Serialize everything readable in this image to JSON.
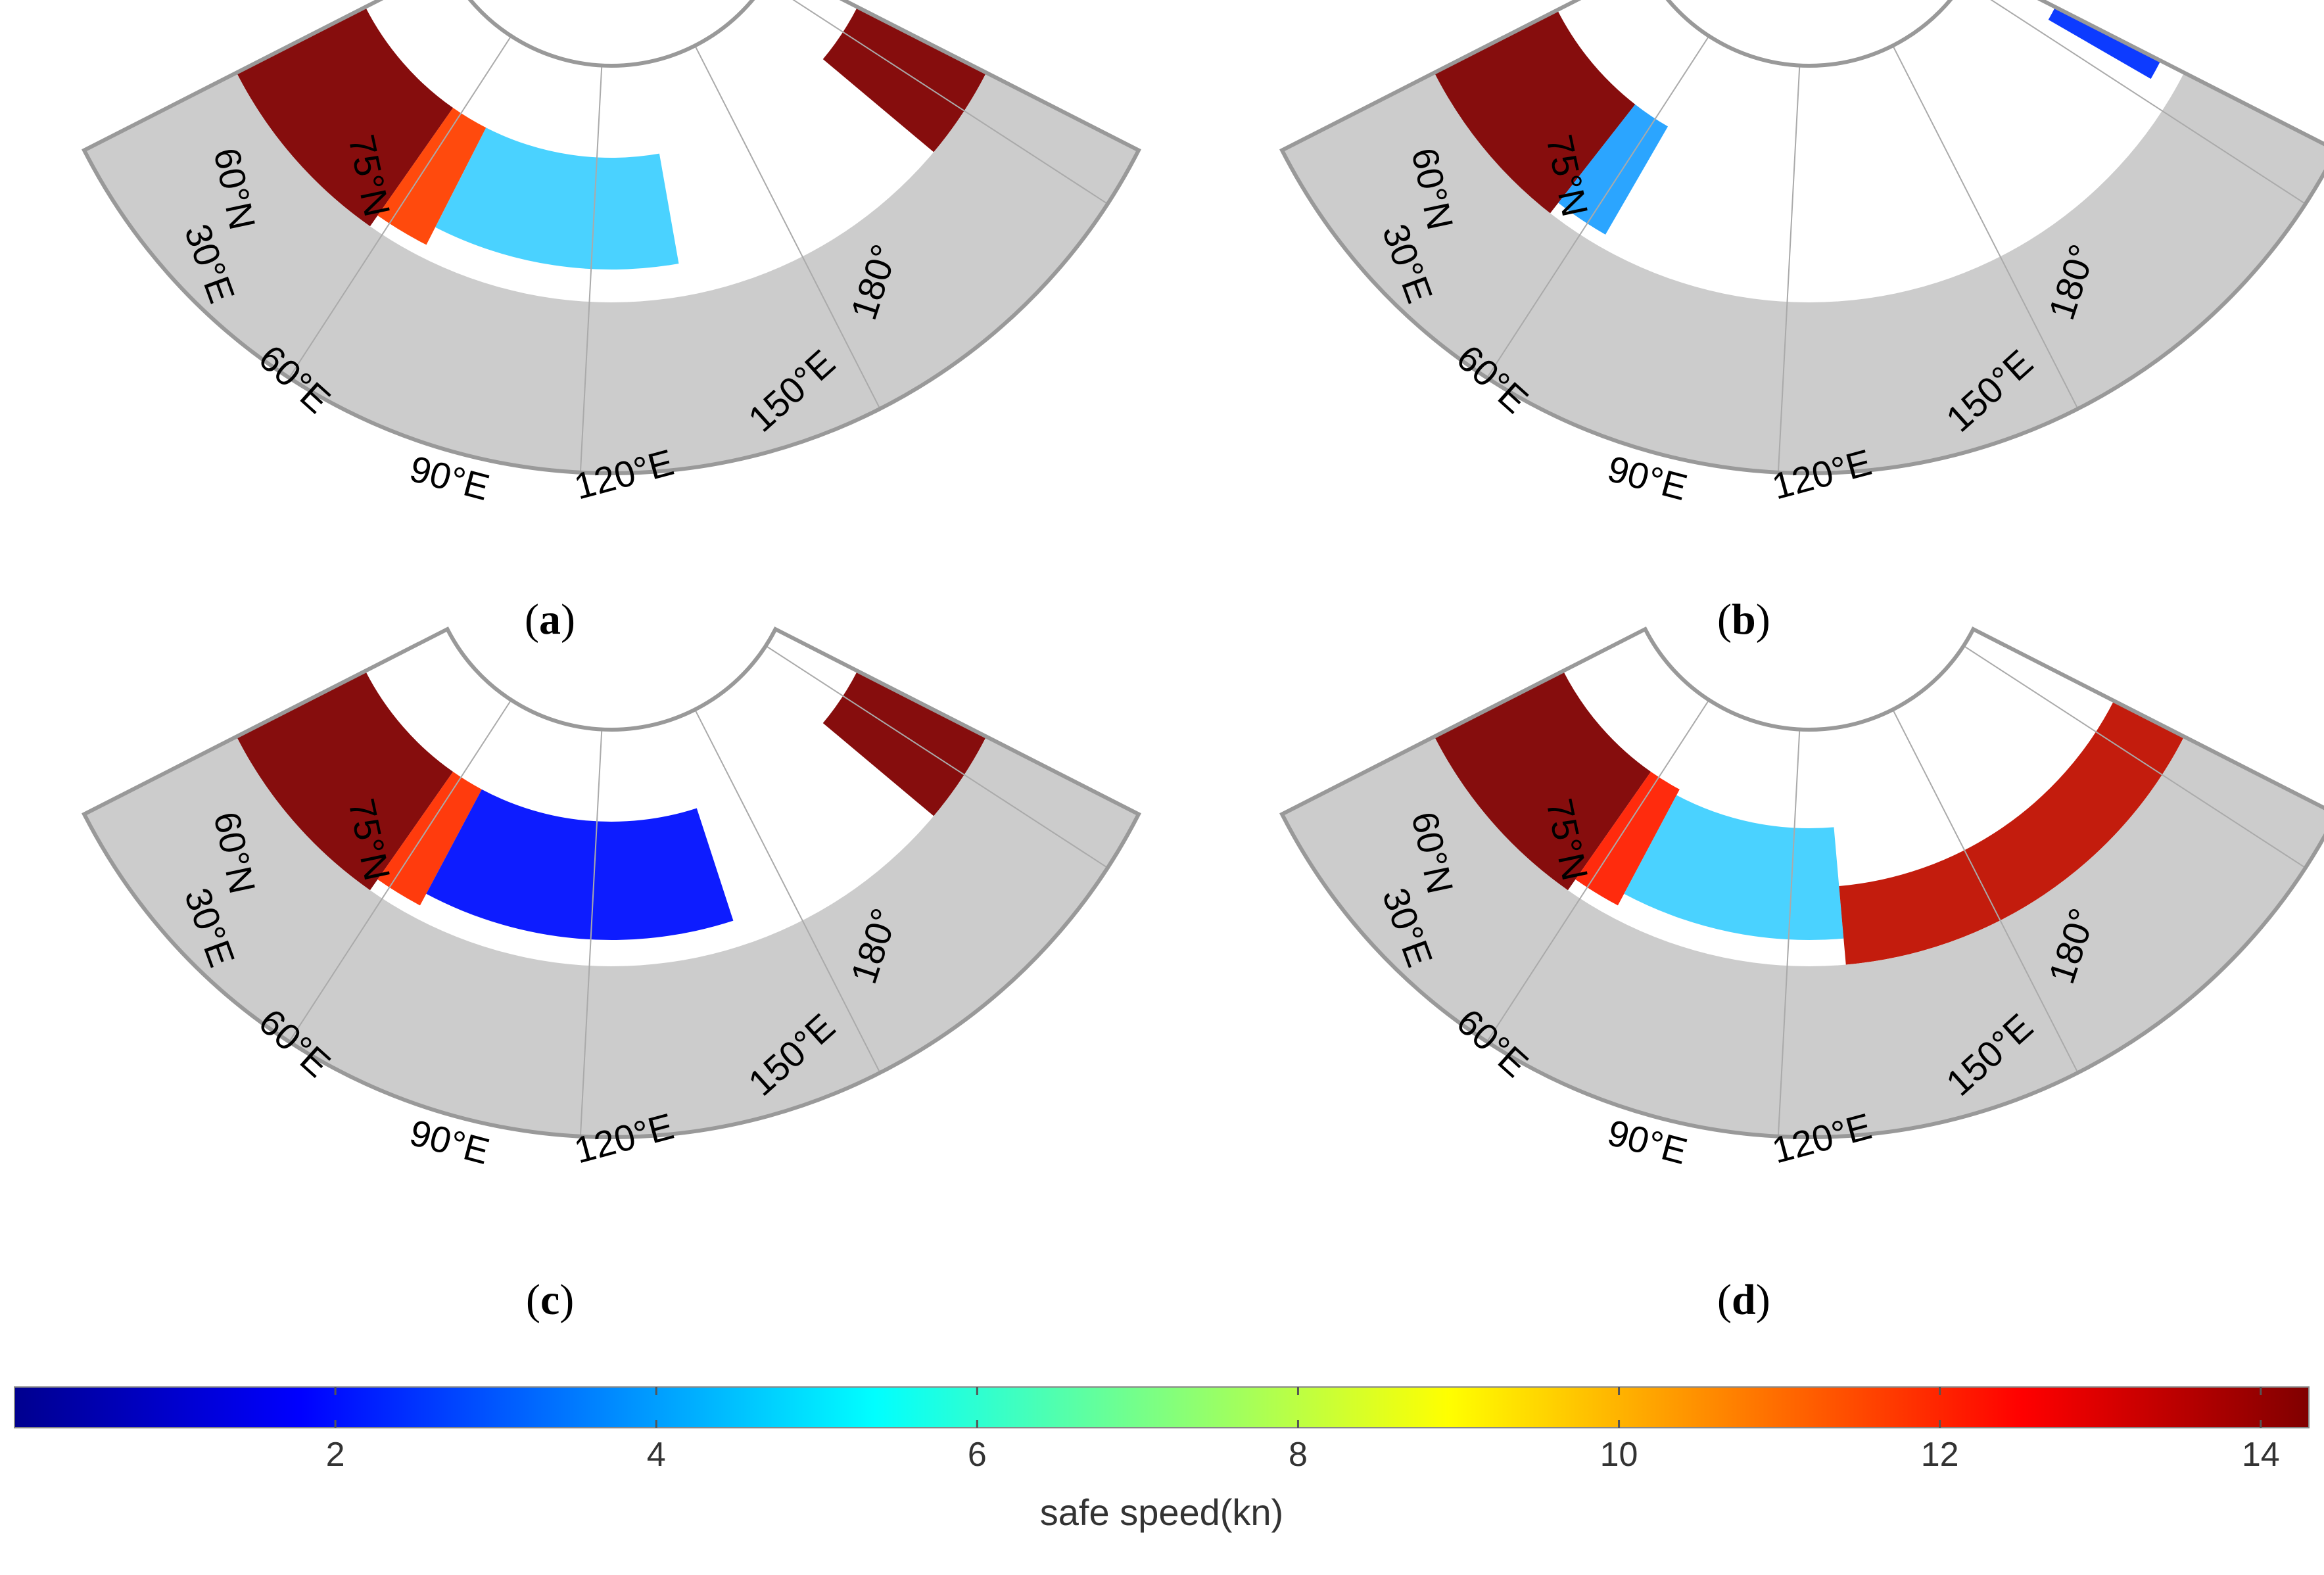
{
  "figure": {
    "panels": [
      {
        "id": "a",
        "caption": "a",
        "labels": {
          "lat60": "60°N",
          "lat75": "75°N",
          "lon30": "30°E",
          "lon60": "60°E",
          "lon90": "90°E",
          "lon120": "120°E",
          "lon150": "150°E",
          "lon180": "180°"
        }
      },
      {
        "id": "b",
        "caption": "b",
        "labels": {
          "lat60": "60°N",
          "lat75": "75°N",
          "lon30": "30°E",
          "lon60": "60°E",
          "lon90": "90°E",
          "lon120": "120°E",
          "lon150": "150°E",
          "lon180": "180°"
        }
      },
      {
        "id": "c",
        "caption": "c",
        "labels": {
          "lat60": "60°N",
          "lat75": "75°N",
          "lon30": "30°E",
          "lon60": "60°E",
          "lon90": "90°E",
          "lon120": "120°E",
          "lon150": "150°E",
          "lon180": "180°"
        }
      },
      {
        "id": "d",
        "caption": "d",
        "labels": {
          "lat60": "60°N",
          "lat75": "75°N",
          "lon30": "30°E",
          "lon60": "60°E",
          "lon90": "90°E",
          "lon120": "120°E",
          "lon150": "150°E",
          "lon180": "180°"
        }
      }
    ],
    "colors": {
      "land": "#cccccc",
      "ice_free_high": "#800000",
      "ice": "#ffffff",
      "frame": "#999999"
    }
  },
  "colorbar": {
    "label": "safe speed(kn)",
    "min": 0,
    "max": 14.3,
    "ticks": [
      2,
      4,
      6,
      8,
      10,
      12,
      14
    ],
    "tick_labels": [
      "2",
      "4",
      "6",
      "8",
      "10",
      "12",
      "14"
    ],
    "colormap": "jet"
  }
}
